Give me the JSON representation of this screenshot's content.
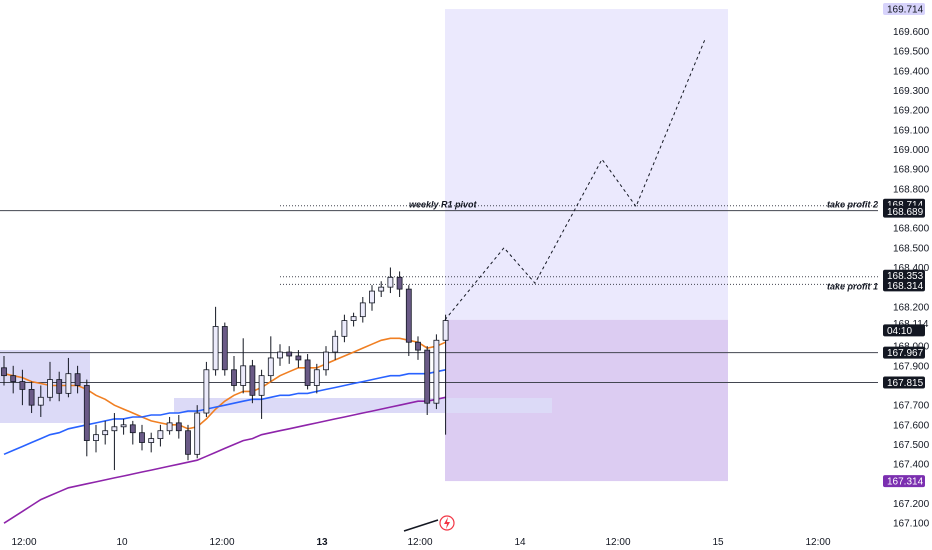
{
  "chart_data": {
    "type": "candlestick",
    "currency": "JPY",
    "price_axis": {
      "min": 167.05,
      "max": 169.76,
      "ticks": [
        "169.600",
        "169.500",
        "169.400",
        "169.300",
        "169.200",
        "169.100",
        "169.000",
        "168.900",
        "168.800",
        "168.600",
        "168.500",
        "168.400",
        "168.200",
        "168.114",
        "168.000",
        "167.900",
        "167.700",
        "167.600",
        "167.500",
        "167.400",
        "167.200",
        "167.100"
      ]
    },
    "time_axis": {
      "labels": [
        {
          "text": "12:00",
          "bold": false
        },
        {
          "text": "10",
          "bold": false
        },
        {
          "text": "12:00",
          "bold": false
        },
        {
          "text": "13",
          "bold": true
        },
        {
          "text": "12:00",
          "bold": false
        },
        {
          "text": "14",
          "bold": false
        },
        {
          "text": "12:00",
          "bold": false
        },
        {
          "text": "15",
          "bold": false
        },
        {
          "text": "12:00",
          "bold": false
        }
      ]
    },
    "price_tags": [
      {
        "text": "169.714",
        "kind": "target"
      },
      {
        "text": "168.714",
        "kind": "dark"
      },
      {
        "text": "168.689",
        "kind": "dark"
      },
      {
        "text": "168.353",
        "kind": "dark"
      },
      {
        "text": "168.314",
        "kind": "dark"
      },
      {
        "text": "04:10",
        "kind": "dark"
      },
      {
        "text": "167.967",
        "kind": "dark"
      },
      {
        "text": "167.815",
        "kind": "dark"
      },
      {
        "text": "167.314",
        "kind": "stop"
      }
    ],
    "horizontal_lines": [
      {
        "price": 168.689,
        "style": "solid"
      },
      {
        "price": 168.714,
        "style": "dotted"
      },
      {
        "price": 168.353,
        "style": "dotted"
      },
      {
        "price": 168.314,
        "style": "dotted"
      },
      {
        "price": 167.967,
        "style": "solid"
      },
      {
        "price": 167.815,
        "style": "solid"
      }
    ],
    "annotations": [
      {
        "text": "weekly R1 pivot"
      },
      {
        "text": "take profit 2"
      },
      {
        "text": "take profit 1"
      }
    ],
    "position": {
      "entry": 168.134,
      "target": 169.714,
      "stop": 167.314
    },
    "projection_path": [
      168.134,
      168.5,
      168.32,
      168.95,
      168.71,
      169.56
    ],
    "candles": [
      [
        167.89,
        167.85,
        167.95,
        167.8
      ],
      [
        167.85,
        167.82,
        167.9,
        167.76
      ],
      [
        167.82,
        167.78,
        167.88,
        167.7
      ],
      [
        167.78,
        167.7,
        167.82,
        167.66
      ],
      [
        167.7,
        167.74,
        167.8,
        167.64
      ],
      [
        167.74,
        167.83,
        167.92,
        167.72
      ],
      [
        167.83,
        167.76,
        167.87,
        167.72
      ],
      [
        167.76,
        167.86,
        167.94,
        167.74
      ],
      [
        167.86,
        167.8,
        167.9,
        167.76
      ],
      [
        167.8,
        167.52,
        167.83,
        167.44
      ],
      [
        167.52,
        167.55,
        167.6,
        167.46
      ],
      [
        167.55,
        167.57,
        167.62,
        167.5
      ],
      [
        167.57,
        167.59,
        167.66,
        167.37
      ],
      [
        167.59,
        167.6,
        167.63,
        167.55
      ],
      [
        167.6,
        167.56,
        167.62,
        167.5
      ],
      [
        167.56,
        167.51,
        167.6,
        167.47
      ],
      [
        167.51,
        167.53,
        167.56,
        167.46
      ],
      [
        167.53,
        167.57,
        167.6,
        167.49
      ],
      [
        167.57,
        167.61,
        167.64,
        167.55
      ],
      [
        167.61,
        167.57,
        167.65,
        167.53
      ],
      [
        167.57,
        167.45,
        167.6,
        167.42
      ],
      [
        167.45,
        167.66,
        167.7,
        167.43
      ],
      [
        167.66,
        167.88,
        167.92,
        167.64
      ],
      [
        167.88,
        168.1,
        168.2,
        167.85
      ],
      [
        168.1,
        167.88,
        168.12,
        167.85
      ],
      [
        167.88,
        167.8,
        167.95,
        167.77
      ],
      [
        167.8,
        167.9,
        168.04,
        167.76
      ],
      [
        167.9,
        167.75,
        167.93,
        167.71
      ],
      [
        167.75,
        167.85,
        167.88,
        167.63
      ],
      [
        167.85,
        167.94,
        168.05,
        167.82
      ],
      [
        167.94,
        167.97,
        168.01,
        167.9
      ],
      [
        167.97,
        167.95,
        168.0,
        167.91
      ],
      [
        167.95,
        167.93,
        167.98,
        167.89
      ],
      [
        167.93,
        167.8,
        167.96,
        167.78
      ],
      [
        167.8,
        167.88,
        167.91,
        167.76
      ],
      [
        167.88,
        167.97,
        168.0,
        167.85
      ],
      [
        167.97,
        168.05,
        168.08,
        167.93
      ],
      [
        168.05,
        168.13,
        168.16,
        168.02
      ],
      [
        168.13,
        168.15,
        168.17,
        168.1
      ],
      [
        168.15,
        168.22,
        168.25,
        168.12
      ],
      [
        168.22,
        168.28,
        168.31,
        168.18
      ],
      [
        168.28,
        168.3,
        168.33,
        168.25
      ],
      [
        168.3,
        168.35,
        168.4,
        168.27
      ],
      [
        168.35,
        168.29,
        168.38,
        168.25
      ],
      [
        168.29,
        168.02,
        168.31,
        167.95
      ],
      [
        168.02,
        167.98,
        168.05,
        167.93
      ],
      [
        167.98,
        167.71,
        168.0,
        167.65
      ],
      [
        167.71,
        168.03,
        168.06,
        167.68
      ],
      [
        168.03,
        168.13,
        168.16,
        167.55
      ]
    ],
    "moving_averages": [
      {
        "color": "#f07f22",
        "values": [
          167.86,
          167.85,
          167.84,
          167.82,
          167.81,
          167.8,
          167.8,
          167.8,
          167.8,
          167.78,
          167.75,
          167.73,
          167.7,
          167.68,
          167.66,
          167.64,
          167.62,
          167.61,
          167.6,
          167.6,
          167.58,
          167.59,
          167.63,
          167.68,
          167.72,
          167.75,
          167.77,
          167.77,
          167.79,
          167.82,
          167.85,
          167.87,
          167.89,
          167.89,
          167.89,
          167.91,
          167.93,
          167.95,
          167.97,
          167.99,
          168.01,
          168.03,
          168.04,
          168.04,
          168.03,
          168.02,
          167.99,
          168.0,
          168.02
        ]
      },
      {
        "color": "#2962ff",
        "values": [
          167.45,
          167.47,
          167.49,
          167.51,
          167.53,
          167.55,
          167.56,
          167.58,
          167.59,
          167.6,
          167.61,
          167.62,
          167.63,
          167.63,
          167.64,
          167.64,
          167.65,
          167.65,
          167.66,
          167.66,
          167.67,
          167.67,
          167.68,
          167.69,
          167.7,
          167.71,
          167.72,
          167.73,
          167.73,
          167.74,
          167.75,
          167.75,
          167.76,
          167.76,
          167.77,
          167.78,
          167.79,
          167.8,
          167.81,
          167.82,
          167.83,
          167.84,
          167.85,
          167.85,
          167.86,
          167.86,
          167.86,
          167.87,
          167.88
        ]
      },
      {
        "color": "#8e24aa",
        "values": [
          167.1,
          167.13,
          167.16,
          167.19,
          167.22,
          167.24,
          167.26,
          167.28,
          167.29,
          167.3,
          167.31,
          167.32,
          167.33,
          167.34,
          167.35,
          167.36,
          167.37,
          167.38,
          167.39,
          167.4,
          167.41,
          167.42,
          167.44,
          167.46,
          167.48,
          167.5,
          167.52,
          167.53,
          167.55,
          167.56,
          167.57,
          167.58,
          167.59,
          167.6,
          167.61,
          167.62,
          167.63,
          167.64,
          167.65,
          167.66,
          167.67,
          167.68,
          167.69,
          167.7,
          167.71,
          167.72,
          167.72,
          167.73,
          167.74
        ]
      }
    ]
  }
}
